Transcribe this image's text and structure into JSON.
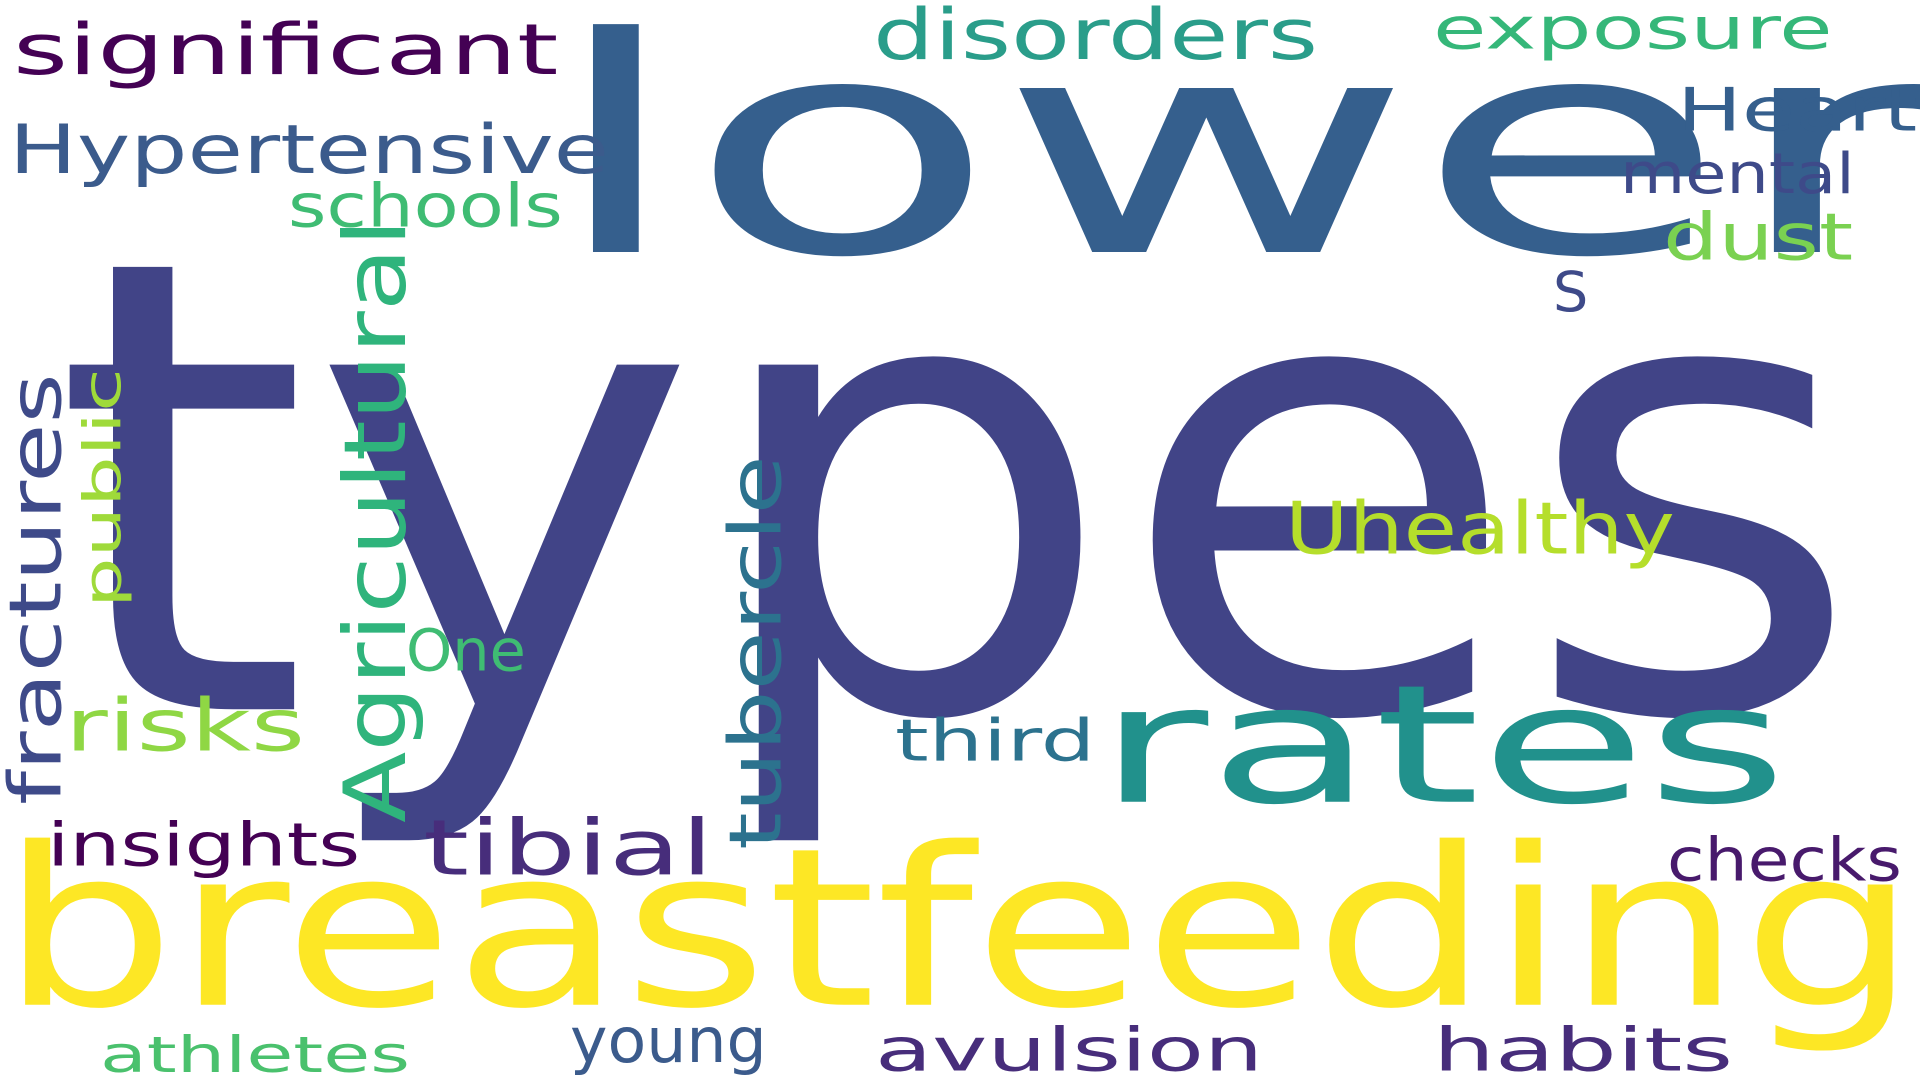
{
  "word_cloud": {
    "words": [
      {
        "text": "types",
        "color": "#414487",
        "vertical": false
      },
      {
        "text": "lower",
        "color": "#355f8d",
        "vertical": false
      },
      {
        "text": "breastfeeding",
        "color": "#fde725",
        "vertical": false
      },
      {
        "text": "rates",
        "color": "#21918c",
        "vertical": false
      },
      {
        "text": "significant",
        "color": "#440154",
        "vertical": false
      },
      {
        "text": "disorders",
        "color": "#2a9d8a",
        "vertical": false
      },
      {
        "text": "exposure",
        "color": "#35b779",
        "vertical": false
      },
      {
        "text": "Hypertensive",
        "color": "#3b5b8c",
        "vertical": false
      },
      {
        "text": "Heart",
        "color": "#355f8d",
        "vertical": false
      },
      {
        "text": "mental",
        "color": "#3e4a89",
        "vertical": false
      },
      {
        "text": "dust",
        "color": "#7ad151",
        "vertical": false
      },
      {
        "text": "schools",
        "color": "#3fbc73",
        "vertical": false
      },
      {
        "text": "S",
        "color": "#3e4a89",
        "vertical": false
      },
      {
        "text": "Uhealthy",
        "color": "#b5de2b",
        "vertical": false
      },
      {
        "text": "One",
        "color": "#3fbc73",
        "vertical": false
      },
      {
        "text": "risks",
        "color": "#8fd744",
        "vertical": false
      },
      {
        "text": "third",
        "color": "#2c728e",
        "vertical": false
      },
      {
        "text": "insights",
        "color": "#440154",
        "vertical": false
      },
      {
        "text": "tibial",
        "color": "#472d7b",
        "vertical": false
      },
      {
        "text": "checks",
        "color": "#481a6c",
        "vertical": false
      },
      {
        "text": "young",
        "color": "#3b5b8c",
        "vertical": false
      },
      {
        "text": "athletes",
        "color": "#4ac16d",
        "vertical": false
      },
      {
        "text": "avulsion",
        "color": "#472d7b",
        "vertical": false
      },
      {
        "text": "habits",
        "color": "#472d7b",
        "vertical": false
      },
      {
        "text": "fractures",
        "color": "#3e4a89",
        "vertical": true
      },
      {
        "text": "public",
        "color": "#9fda3a",
        "vertical": true
      },
      {
        "text": "Agricultural",
        "color": "#2fb47c",
        "vertical": true
      },
      {
        "text": "tubercle",
        "color": "#2c728e",
        "vertical": true
      }
    ]
  }
}
